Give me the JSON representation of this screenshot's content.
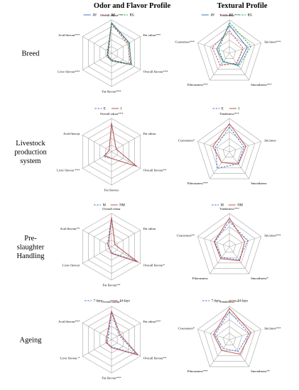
{
  "titles": {
    "left": "Odor and Flavor Profile",
    "right": "Textural Profile"
  },
  "rows": [
    {
      "label": [
        "Breed"
      ]
    },
    {
      "label": [
        "Livestock",
        "production",
        "system"
      ]
    },
    {
      "label": [
        "Pre-",
        "slaughter",
        "Handling"
      ]
    },
    {
      "label": [
        "Ageing"
      ]
    }
  ],
  "colors": {
    "blue": "#4472c4",
    "red": "#c0504d",
    "green": "#2e9c3a",
    "grid": "#a6a6a6"
  },
  "chart_data": [
    {
      "type": "radar",
      "panel": "odor-breed",
      "axes": [
        "Overall odour***",
        "Fat odour***",
        "Overall flavour***",
        "Fat flavour***",
        "Liver flavour***",
        "Acid flavour***"
      ],
      "rmax": 5,
      "rings": 5,
      "series": [
        {
          "name": "AV",
          "dash": "solid",
          "color": "blue",
          "values": [
            4.6,
            3.1,
            3.4,
            1.1,
            0.7,
            0.6
          ]
        },
        {
          "name": "RE",
          "dash": "dashed",
          "color": "red",
          "values": [
            4.4,
            2.8,
            3.3,
            1.0,
            0.6,
            0.5
          ]
        },
        {
          "name": "RG",
          "dash": "dashed",
          "color": "green",
          "values": [
            4.5,
            3.0,
            3.5,
            1.2,
            0.8,
            0.7
          ]
        }
      ]
    },
    {
      "type": "radar",
      "panel": "texture-breed",
      "axes": [
        "Tenderness***",
        "Juiciness***",
        "Smoothness***",
        "Fibrousness***",
        "Coarseness***"
      ],
      "rmax": 5,
      "rings": 5,
      "series": [
        {
          "name": "AV",
          "dash": "solid",
          "color": "blue",
          "values": [
            4.2,
            2.8,
            2.2,
            1.6,
            2.0
          ]
        },
        {
          "name": "RE",
          "dash": "dashed",
          "color": "red",
          "values": [
            3.4,
            2.2,
            1.8,
            2.3,
            2.7
          ]
        },
        {
          "name": "RG",
          "dash": "dashed",
          "color": "green",
          "values": [
            4.6,
            3.4,
            2.4,
            1.5,
            1.7
          ]
        }
      ]
    },
    {
      "type": "radar",
      "panel": "odor-system",
      "axes": [
        "Overall odour***",
        "Fat odour",
        "Overall flavour**",
        "Fat flavour",
        "Liver flavour ***",
        "Acid flavour"
      ],
      "rmax": 5,
      "rings": 5,
      "series": [
        {
          "name": "E",
          "dash": "dashed",
          "color": "blue",
          "values": [
            4.3,
            0.8,
            4.3,
            1.0,
            1.4,
            0.4
          ]
        },
        {
          "name": "I",
          "dash": "solid",
          "color": "red",
          "values": [
            4.3,
            0.8,
            4.4,
            1.0,
            1.2,
            0.4
          ]
        }
      ]
    },
    {
      "type": "radar",
      "panel": "texture-system",
      "axes": [
        "Tenderness***",
        "Juiciness",
        "Smoothness",
        "Fibrousness***",
        "Coarseness*"
      ],
      "rmax": 5,
      "rings": 5,
      "series": [
        {
          "name": "E",
          "dash": "dashed",
          "color": "blue",
          "values": [
            3.7,
            2.3,
            2.2,
            3.1,
            2.2
          ]
        },
        {
          "name": "I",
          "dash": "solid",
          "color": "red",
          "values": [
            4.2,
            2.6,
            2.3,
            2.0,
            2.6
          ]
        }
      ]
    },
    {
      "type": "radar",
      "panel": "odor-handling",
      "axes": [
        "Overall odour",
        "Fat odour",
        "Overall flavour*",
        "Fat flavour**",
        "Liver flavour",
        "Acid flavour**"
      ],
      "rmax": 5,
      "rings": 5,
      "series": [
        {
          "name": "M",
          "dash": "dashed",
          "color": "blue",
          "values": [
            4.4,
            0.6,
            4.3,
            0.9,
            0.4,
            0.7
          ]
        },
        {
          "name": "NM",
          "dash": "solid",
          "color": "red",
          "values": [
            4.4,
            0.6,
            4.6,
            1.0,
            0.4,
            0.5
          ]
        }
      ]
    },
    {
      "type": "radar",
      "panel": "texture-handling",
      "axes": [
        "Tenderness***",
        "Juiciness***",
        "Smoothness*",
        "Fibrousness",
        "Coarseness**"
      ],
      "rmax": 5,
      "rings": 5,
      "series": [
        {
          "name": "M",
          "dash": "dashed",
          "color": "blue",
          "values": [
            3.8,
            2.9,
            2.4,
            2.0,
            2.3
          ]
        },
        {
          "name": "NM",
          "dash": "solid",
          "color": "red",
          "values": [
            4.3,
            2.4,
            2.6,
            2.2,
            2.4
          ]
        }
      ]
    },
    {
      "type": "radar",
      "panel": "odor-ageing",
      "axes": [
        "Overall odour*",
        "Fat odour***",
        "Overall flavour**",
        "Fat flavour***",
        "Liver flavour *",
        "Acid flavour***"
      ],
      "rmax": 5,
      "rings": 5,
      "series": [
        {
          "name": "7 days",
          "dash": "dashed",
          "color": "blue",
          "values": [
            4.1,
            1.3,
            4.4,
            1.1,
            0.8,
            0.6
          ]
        },
        {
          "name": "14 days",
          "dash": "solid",
          "color": "red",
          "values": [
            4.3,
            1.5,
            4.6,
            1.2,
            0.9,
            0.8
          ]
        }
      ]
    },
    {
      "type": "radar",
      "panel": "texture-ageing",
      "axes": [
        "Tenderness***",
        "Juiciness***",
        "Smoothness**",
        "Fibrousness***",
        "Coarseness*"
      ],
      "rmax": 5,
      "rings": 5,
      "series": [
        {
          "name": "7 days",
          "dash": "dashed",
          "color": "blue",
          "values": [
            4.2,
            3.1,
            2.2,
            1.6,
            2.3
          ]
        },
        {
          "name": "14 days",
          "dash": "solid",
          "color": "red",
          "values": [
            4.7,
            3.4,
            2.7,
            2.0,
            2.5
          ]
        }
      ]
    }
  ]
}
